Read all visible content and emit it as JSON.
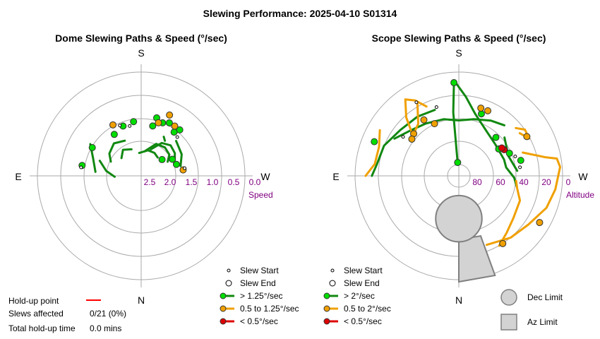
{
  "title": "Slewing Performance: 2025-04-10 S01314",
  "info": {
    "holdup_label": "Hold-up point",
    "slews_affected_label": "Slews affected",
    "slews_affected_value": "0/21 (0%)",
    "total_holdup_label": "Total hold-up time",
    "total_holdup_value": "0.0 mins",
    "holdup_color": "#ff0000"
  },
  "colors": {
    "fast": "#00dd00",
    "fast_line": "#118811",
    "medium": "#f0a000",
    "slow": "#dd0000",
    "grid": "#aaaaaa",
    "tick_text": "#800080",
    "limit_fill": "#d3d3d3",
    "limit_stroke": "#808080"
  },
  "chart_data": [
    {
      "type": "scatter",
      "panel": "dome",
      "title": "Dome Slewing Paths & Speed (°/sec)",
      "projection": "polar",
      "cardinals": {
        "top": "S",
        "bottom": "N",
        "left": "E",
        "right": "W"
      },
      "radial_axis_label": "Speed",
      "radial_ticks": [
        "2.5",
        "2.0",
        "1.5",
        "1.0",
        "0.5",
        "0.0"
      ],
      "radial_range": [
        3.0,
        0.0
      ],
      "legend": [
        {
          "label": "Slew Start",
          "kind": "start"
        },
        {
          "label": "Slew End",
          "kind": "end"
        },
        {
          "label": "> 1.25°/sec",
          "kind": "fast"
        },
        {
          "label": "0.5 to 1.25°/sec",
          "kind": "medium"
        },
        {
          "label": "< 0.5°/sec",
          "kind": "slow"
        }
      ],
      "paths": [
        {
          "points": [
            [
              160,
              2.2
            ],
            [
              148,
              1.9
            ],
            [
              136,
              1.8
            ],
            [
              124,
              1.85
            ],
            [
              115,
              1.95
            ]
          ],
          "speed": "fast"
        },
        {
          "points": [
            [
              172,
              2.3
            ],
            [
              155,
              2.0
            ],
            [
              140,
              1.95
            ],
            [
              127,
              2.0
            ],
            [
              118,
              2.15
            ]
          ],
          "speed": "fast"
        },
        {
          "points": [
            [
              185,
              2.35
            ],
            [
              165,
              2.25
            ],
            [
              150,
              2.25
            ],
            [
              138,
              2.3
            ]
          ],
          "speed": "fast"
        },
        {
          "points": [
            [
              200,
              2.2
            ],
            [
              215,
              2.1
            ],
            [
              228,
              2.25
            ]
          ],
          "speed": "fast"
        },
        {
          "points": [
            [
              205,
              1.9
            ],
            [
              220,
              1.8
            ],
            [
              235,
              1.9
            ],
            [
              245,
              2.05
            ]
          ],
          "speed": "fast"
        },
        {
          "points": [
            [
              135,
              1.6
            ],
            [
              118,
              1.7
            ],
            [
              104,
              1.85
            ]
          ],
          "speed": "fast"
        },
        {
          "points": [
            [
              250,
              1.75
            ],
            [
              262,
              2.0
            ],
            [
              272,
              2.25
            ]
          ],
          "speed": "fast"
        },
        {
          "points": [
            [
              238,
              1.3
            ],
            [
              250,
              1.55
            ],
            [
              265,
              1.7
            ]
          ],
          "speed": "fast"
        },
        {
          "points": [
            [
              146,
              1.8
            ],
            [
              150,
              1.72
            ]
          ],
          "speed": "fast"
        }
      ],
      "markers": [
        {
          "a": 165,
          "r": 1.3,
          "speed": "fast"
        },
        {
          "a": 158,
          "r": 1.38,
          "speed": "fast"
        },
        {
          "a": 152,
          "r": 1.3,
          "speed": "fast"
        },
        {
          "a": 143,
          "r": 1.45,
          "speed": "fast"
        },
        {
          "a": 167,
          "r": 1.55,
          "speed": "fast"
        },
        {
          "a": 200,
          "r": 1.5,
          "speed": "fast"
        },
        {
          "a": 213,
          "r": 1.6,
          "speed": "fast"
        },
        {
          "a": 240,
          "r": 1.4,
          "speed": "fast"
        },
        {
          "a": 260,
          "r": 1.3,
          "speed": "fast"
        },
        {
          "a": 128,
          "r": 2.25,
          "speed": "fast"
        },
        {
          "a": 118,
          "r": 2.0,
          "speed": "fast"
        },
        {
          "a": 108,
          "r": 1.95,
          "speed": "fast"
        },
        {
          "a": 140,
          "r": 1.3,
          "speed": "fast"
        },
        {
          "a": 188,
          "r": 1.45,
          "speed": "fast"
        },
        {
          "a": 162,
          "r": 1.42,
          "speed": "medium"
        },
        {
          "a": 146,
          "r": 1.3,
          "speed": "medium"
        },
        {
          "a": 155,
          "r": 1.1,
          "speed": "medium"
        },
        {
          "a": 98,
          "r": 1.8,
          "speed": "medium"
        },
        {
          "a": 209,
          "r": 1.35,
          "speed": "medium"
        }
      ],
      "end_markers": [
        {
          "a": 203,
          "r": 1.45
        },
        {
          "a": 262,
          "r": 1.28
        },
        {
          "a": 100,
          "r": 1.75
        },
        {
          "a": 137,
          "r": 1.5
        },
        {
          "a": 193,
          "r": 1.55
        }
      ]
    },
    {
      "type": "scatter",
      "panel": "scope",
      "title": "Scope Slewing Paths & Speed (°/sec)",
      "projection": "polar",
      "cardinals": {
        "top": "S",
        "bottom": "N",
        "left": "E",
        "right": "W"
      },
      "radial_axis_label": "Altitude",
      "radial_ticks": [
        "80",
        "60",
        "40",
        "20",
        "0"
      ],
      "radial_range": [
        90,
        0
      ],
      "legend": [
        {
          "label": "Slew Start",
          "kind": "start"
        },
        {
          "label": "Slew End",
          "kind": "end"
        },
        {
          "label": "> 2°/sec",
          "kind": "fast"
        },
        {
          "label": "0.5 to 2°/sec",
          "kind": "medium"
        },
        {
          "label": "< 0.5°/sec",
          "kind": "slow"
        }
      ],
      "limits_legend": [
        {
          "label": "Dec Limit",
          "kind": "circle"
        },
        {
          "label": "Az Limit",
          "kind": "square"
        }
      ],
      "paths": [
        {
          "points": [
            [
              270,
              18
            ],
            [
              262,
              22
            ],
            [
              248,
              24
            ],
            [
              232,
              30
            ],
            [
              215,
              32
            ],
            [
              200,
              34
            ]
          ],
          "speed": "fast"
        },
        {
          "points": [
            [
              240,
              30
            ],
            [
              226,
              38
            ],
            [
              212,
              42
            ],
            [
              195,
              45
            ],
            [
              180,
              48
            ],
            [
              165,
              45
            ],
            [
              150,
              40
            ],
            [
              138,
              36
            ]
          ],
          "speed": "fast"
        },
        {
          "points": [
            [
              182,
              12
            ],
            [
              175,
              25
            ],
            [
              165,
              40
            ],
            [
              150,
              50
            ],
            [
              130,
              55
            ],
            [
              110,
              55
            ],
            [
              100,
              55
            ],
            [
              88,
              48
            ],
            [
              80,
              45
            ]
          ],
          "speed": "fast"
        },
        {
          "points": [
            [
              183,
              12
            ],
            [
              185,
              40
            ],
            [
              185,
              88
            ]
          ],
          "speed": "fast"
        },
        {
          "points": [
            [
              130,
              44
            ],
            [
              112,
              50
            ],
            [
              95,
              45
            ]
          ],
          "speed": "fast"
        },
        {
          "points": [
            [
              205,
              28
            ],
            [
              210,
              18
            ],
            [
              215,
              12
            ],
            [
              222,
              26
            ],
            [
              230,
              45
            ]
          ],
          "speed": "medium"
        },
        {
          "points": [
            [
              110,
              36
            ],
            [
              102,
              16
            ],
            [
              100,
              6
            ],
            [
              95,
              4
            ],
            [
              82,
              8
            ],
            [
              70,
              12
            ],
            [
              55,
              20
            ],
            [
              40,
              24
            ],
            [
              22,
              30
            ]
          ],
          "speed": "medium"
        },
        {
          "points": [
            [
              240,
              14
            ],
            [
              250,
              20
            ],
            [
              262,
              20
            ],
            [
              270,
              12
            ]
          ],
          "speed": "medium"
        },
        {
          "points": [
            [
              125,
              30
            ],
            [
              118,
              25
            ],
            [
              125,
              24
            ],
            [
              130,
              30
            ]
          ],
          "speed": "medium"
        },
        {
          "points": [
            [
              210,
              22
            ],
            [
              218,
              38
            ],
            [
              222,
              40
            ],
            [
              232,
              44
            ]
          ],
          "speed": "medium"
        },
        {
          "points": [
            [
              85,
              46
            ],
            [
              78,
              44
            ],
            [
              68,
              38
            ],
            [
              52,
              35
            ],
            [
              40,
              30
            ],
            [
              30,
              24
            ]
          ],
          "speed": "medium"
        }
      ],
      "markers": [
        {
          "a": 183,
          "r": 12,
          "speed": "fast"
        },
        {
          "a": 185,
          "r": 88,
          "speed": "fast"
        },
        {
          "a": 248,
          "r": 14,
          "speed": "fast"
        },
        {
          "a": 136,
          "r": 50,
          "speed": "fast"
        },
        {
          "a": 160,
          "r": 38,
          "speed": "fast"
        },
        {
          "a": 114,
          "r": 48,
          "speed": "fast"
        },
        {
          "a": 124,
          "r": 55,
          "speed": "fast"
        },
        {
          "a": 104,
          "r": 40,
          "speed": "fast"
        },
        {
          "a": 162,
          "r": 33,
          "speed": "medium"
        },
        {
          "a": 156,
          "r": 33,
          "speed": "medium"
        },
        {
          "a": 212,
          "r": 38,
          "speed": "medium"
        },
        {
          "a": 205,
          "r": 46,
          "speed": "medium"
        },
        {
          "a": 227,
          "r": 42,
          "speed": "medium"
        },
        {
          "a": 232,
          "r": 44,
          "speed": "medium"
        },
        {
          "a": 120,
          "r": 26,
          "speed": "medium"
        },
        {
          "a": 60,
          "r": 12,
          "speed": "medium"
        },
        {
          "a": 33,
          "r": 24,
          "speed": "medium"
        },
        {
          "a": 120,
          "r": 51,
          "speed": "slow"
        },
        {
          "a": 123,
          "r": 52,
          "speed": "slow"
        }
      ],
      "end_markers": [
        {
          "a": 210,
          "r": 20
        },
        {
          "a": 109,
          "r": 44
        },
        {
          "a": 98,
          "r": 42
        },
        {
          "a": 235,
          "r": 36
        },
        {
          "a": 198,
          "r": 32
        }
      ],
      "limits": {
        "dec_limit": {
          "center_a": 0,
          "center_r": 60,
          "radius_deg": 22
        },
        "az_limit": {
          "az_from": 0,
          "az_to": 20,
          "alt_from": 0,
          "alt_to": 40
        }
      }
    }
  ]
}
